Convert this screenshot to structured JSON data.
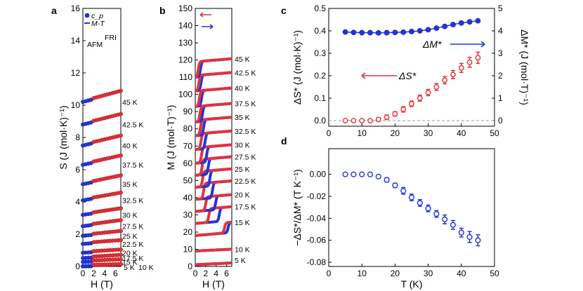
{
  "chart_data": [
    {
      "panel": "a",
      "type": "scatter",
      "xlabel": "H (T)",
      "ylabel": "S (J (mol·K)⁻¹)",
      "xlim": [
        0,
        7
      ],
      "ylim": [
        0,
        16
      ],
      "xticks": [
        "0",
        "2",
        "4",
        "6"
      ],
      "yticks": [
        "0",
        "2",
        "4",
        "6",
        "8",
        "10",
        "12",
        "14",
        "16"
      ],
      "legend": [
        "c_p",
        "M-T"
      ],
      "annotations": [
        "FRI",
        "AFM"
      ],
      "curves": [
        {
          "temp": "5 K",
          "s0": 0.0,
          "slope": 0.01
        },
        {
          "temp": "10 K",
          "s0": 0.02,
          "slope": 0.01
        },
        {
          "temp": "15 K",
          "s0": 0.28,
          "slope": 0.015
        },
        {
          "temp": "17.5 K",
          "s0": 0.52,
          "slope": 0.02
        },
        {
          "temp": "20 K",
          "s0": 0.85,
          "slope": 0.02
        },
        {
          "temp": "22.5 K",
          "s0": 1.4,
          "slope": 0.025
        },
        {
          "temp": "25 K",
          "s0": 1.9,
          "slope": 0.035
        },
        {
          "temp": "27.5 K",
          "s0": 2.5,
          "slope": 0.045
        },
        {
          "temp": "30 K",
          "s0": 3.2,
          "slope": 0.05
        },
        {
          "temp": "32.5 K",
          "s0": 4.1,
          "slope": 0.06
        },
        {
          "temp": "35 K",
          "s0": 5.1,
          "slope": 0.07
        },
        {
          "temp": "37.5 K",
          "s0": 6.3,
          "slope": 0.075
        },
        {
          "temp": "40 K",
          "s0": 7.5,
          "slope": 0.08
        },
        {
          "temp": "42.5 K",
          "s0": 8.8,
          "slope": 0.085
        },
        {
          "temp": "45 K",
          "s0": 10.2,
          "slope": 0.09
        }
      ]
    },
    {
      "panel": "b",
      "type": "line",
      "xlabel": "H (T)",
      "ylabel": "M (J (mol·T)⁻¹)",
      "xlim": [
        0,
        7
      ],
      "ylim": [
        0,
        150
      ],
      "xticks": [
        "0",
        "2",
        "4",
        "6"
      ],
      "yticks": [
        "0",
        "10",
        "20",
        "30",
        "40",
        "50",
        "60",
        "70",
        "80",
        "90",
        "100",
        "110",
        "120",
        "130",
        "140",
        "150"
      ],
      "curves": [
        {
          "temp": "5 K",
          "base": 1,
          "jump": 0,
          "hc_up": 9,
          "hc_down": 9
        },
        {
          "temp": "10 K",
          "base": 9,
          "jump": 0,
          "hc_up": 9,
          "hc_down": 9
        },
        {
          "temp": "15 K",
          "base": 18,
          "jump": 6,
          "hc_up": 6.3,
          "hc_down": 5.6
        },
        {
          "temp": "17.5 K",
          "base": 25,
          "jump": 8,
          "hc_up": 4.6,
          "hc_down": 2.6
        },
        {
          "temp": "20 K",
          "base": 32,
          "jump": 8,
          "hc_up": 3.9,
          "hc_down": 2.0
        },
        {
          "temp": "22.5 K",
          "base": 39,
          "jump": 9,
          "hc_up": 3.3,
          "hc_down": 1.6
        },
        {
          "temp": "25 K",
          "base": 46,
          "jump": 9,
          "hc_up": 2.8,
          "hc_down": 1.4
        },
        {
          "temp": "27.5 K",
          "base": 53,
          "jump": 9,
          "hc_up": 2.5,
          "hc_down": 1.3
        },
        {
          "temp": "30 K",
          "base": 60,
          "jump": 9,
          "hc_up": 2.2,
          "hc_down": 1.2
        },
        {
          "temp": "32.5 K",
          "base": 68,
          "jump": 9,
          "hc_up": 1.9,
          "hc_down": 1.1
        },
        {
          "temp": "35 K",
          "base": 76,
          "jump": 9,
          "hc_up": 1.6,
          "hc_down": 1.0
        },
        {
          "temp": "37.5 K",
          "base": 84,
          "jump": 9,
          "hc_up": 1.4,
          "hc_down": 0.9
        },
        {
          "temp": "40 K",
          "base": 93,
          "jump": 9,
          "hc_up": 1.2,
          "hc_down": 0.8
        },
        {
          "temp": "42.5 K",
          "base": 102,
          "jump": 9,
          "hc_up": 1.1,
          "hc_down": 0.7
        },
        {
          "temp": "45 K",
          "base": 110,
          "jump": 9,
          "hc_up": 1.0,
          "hc_down": 0.6
        }
      ]
    },
    {
      "panel": "c",
      "type": "scatter",
      "xlabel": "",
      "ylabel": "ΔS* (J (mol·K)⁻¹)",
      "ylabel_right": "ΔM* (J (mol·T)⁻¹)",
      "xlim": [
        0,
        50
      ],
      "ylim": [
        0,
        0.5
      ],
      "ylim_right": [
        0,
        5
      ],
      "xticks": [
        "0",
        "10",
        "20",
        "30",
        "40",
        "50"
      ],
      "yticks": [
        "0.0",
        "0.1",
        "0.2",
        "0.3",
        "0.4",
        "0.5"
      ],
      "yticks_right": [
        "0",
        "1",
        "2",
        "3",
        "4",
        "5"
      ],
      "series": [
        {
          "name": "ΔS*",
          "axis": "left",
          "x": [
            5,
            7.5,
            10,
            12.5,
            15,
            17.5,
            20,
            22.5,
            25,
            27.5,
            30,
            32.5,
            35,
            37.5,
            40,
            42.5,
            45
          ],
          "values": [
            0.0,
            0.0,
            0.0,
            0.0,
            0.005,
            0.015,
            0.03,
            0.05,
            0.075,
            0.1,
            0.125,
            0.15,
            0.18,
            0.205,
            0.235,
            0.26,
            0.28
          ],
          "err": [
            0.005,
            0.005,
            0.005,
            0.005,
            0.008,
            0.01,
            0.01,
            0.012,
            0.012,
            0.013,
            0.014,
            0.015,
            0.016,
            0.018,
            0.02,
            0.022,
            0.025
          ]
        },
        {
          "name": "ΔM*",
          "axis": "right",
          "x": [
            5,
            7.5,
            10,
            12.5,
            15,
            17.5,
            20,
            22.5,
            25,
            27.5,
            30,
            32.5,
            35,
            37.5,
            40,
            42.5,
            45
          ],
          "values": [
            3.95,
            3.93,
            3.92,
            3.92,
            3.91,
            3.92,
            3.93,
            3.94,
            3.97,
            4.0,
            4.05,
            4.12,
            4.2,
            4.28,
            4.35,
            4.4,
            4.45
          ]
        }
      ],
      "annotations": [
        "ΔM*",
        "ΔS*"
      ]
    },
    {
      "panel": "d",
      "type": "scatter",
      "xlabel": "T (K)",
      "ylabel": "−ΔS*/ΔM* (T K⁻¹)",
      "xlim": [
        0,
        50
      ],
      "ylim": [
        -0.08,
        0.01
      ],
      "xticks": [
        "0",
        "10",
        "20",
        "30",
        "40",
        "50"
      ],
      "yticks": [
        "0.00",
        "-0.02",
        "-0.04",
        "-0.06",
        "-0.08"
      ],
      "series": [
        {
          "name": "−ΔS*/ΔM*",
          "x": [
            5,
            7.5,
            10,
            12.5,
            15,
            17.5,
            20,
            22.5,
            25,
            27.5,
            30,
            32.5,
            35,
            37.5,
            40,
            42.5,
            45
          ],
          "values": [
            0.0,
            0.0,
            0.0,
            0.0,
            -0.002,
            -0.005,
            -0.01,
            -0.015,
            -0.021,
            -0.026,
            -0.031,
            -0.036,
            -0.041,
            -0.046,
            -0.053,
            -0.057,
            -0.06
          ],
          "err": [
            0.001,
            0.001,
            0.001,
            0.001,
            0.001,
            0.002,
            0.002,
            0.003,
            0.003,
            0.003,
            0.003,
            0.003,
            0.004,
            0.004,
            0.004,
            0.005,
            0.005
          ]
        }
      ]
    }
  ],
  "panel_labels": [
    "a",
    "b",
    "c",
    "d"
  ],
  "colors": {
    "red": "#e3323a",
    "blue": "#2434d8",
    "grey": "#999999"
  }
}
